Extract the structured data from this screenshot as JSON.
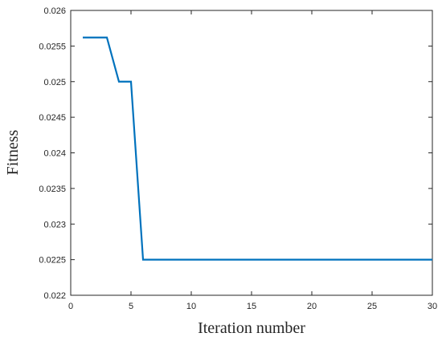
{
  "chart_data": {
    "type": "line",
    "title": "",
    "xlabel": "Iteration number",
    "ylabel": "Fitness",
    "xlim": [
      0,
      30
    ],
    "ylim": [
      0.022,
      0.026
    ],
    "xticks": [
      "0",
      "5",
      "10",
      "15",
      "20",
      "25",
      "30"
    ],
    "yticks": [
      "0.022",
      "0.0225",
      "0.023",
      "0.0235",
      "0.024",
      "0.0245",
      "0.025",
      "0.0255",
      "0.026"
    ],
    "grid": false,
    "series": [
      {
        "color": "#0072bd",
        "x": [
          1,
          2,
          3,
          4,
          5,
          6,
          7,
          8,
          9,
          10,
          11,
          12,
          13,
          14,
          15,
          16,
          17,
          18,
          19,
          20,
          21,
          22,
          23,
          24,
          25,
          26,
          27,
          28,
          29,
          30
        ],
        "y": [
          0.02562,
          0.02562,
          0.02562,
          0.025,
          0.025,
          0.0225,
          0.0225,
          0.0225,
          0.0225,
          0.0225,
          0.0225,
          0.0225,
          0.0225,
          0.0225,
          0.0225,
          0.0225,
          0.0225,
          0.0225,
          0.0225,
          0.0225,
          0.0225,
          0.0225,
          0.0225,
          0.0225,
          0.0225,
          0.0225,
          0.0225,
          0.0225,
          0.0225,
          0.0225
        ]
      }
    ]
  }
}
